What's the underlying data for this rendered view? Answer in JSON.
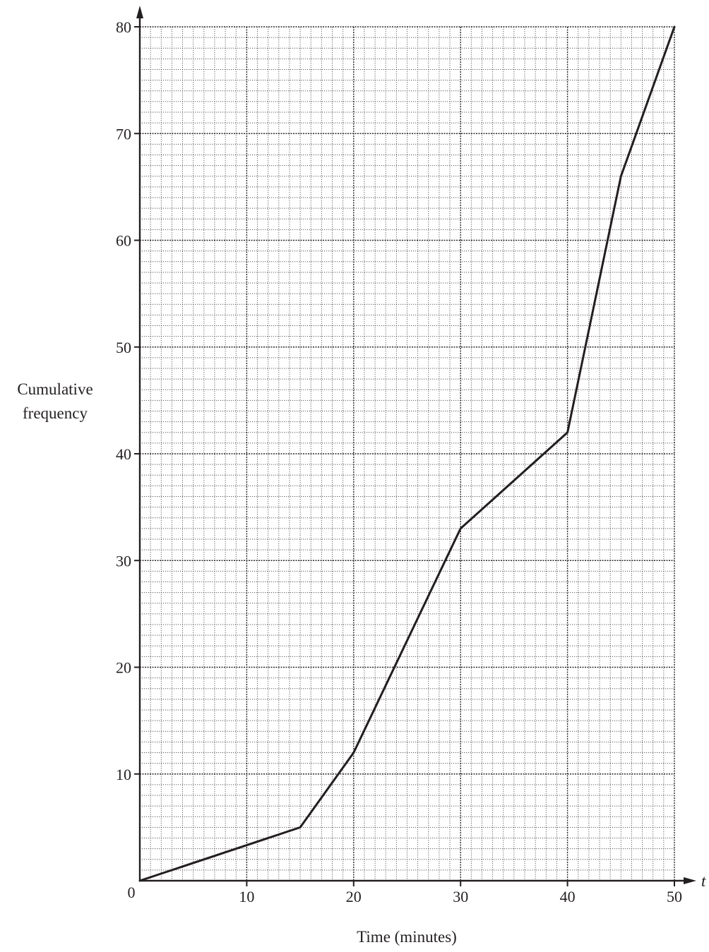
{
  "chart_data": {
    "type": "line",
    "xlabel": "Time (minutes)",
    "ylabel_lines": [
      "Cumulative",
      "frequency"
    ],
    "x_axis_symbol": "t",
    "origin_label": "0",
    "xlim": [
      0,
      50
    ],
    "ylim": [
      0,
      80
    ],
    "x_ticks": [
      10,
      20,
      30,
      40,
      50
    ],
    "y_ticks": [
      10,
      20,
      30,
      40,
      50,
      60,
      70,
      80
    ],
    "grid": true,
    "series": [
      {
        "x": [
          0,
          15,
          20,
          30,
          40,
          45,
          50
        ],
        "y": [
          0,
          5,
          12,
          33,
          42,
          66,
          80
        ]
      }
    ]
  },
  "colors": {
    "line": "#231f20",
    "grid_major": "#231f20",
    "grid_minor": "#231f20",
    "background": "#ffffff"
  }
}
